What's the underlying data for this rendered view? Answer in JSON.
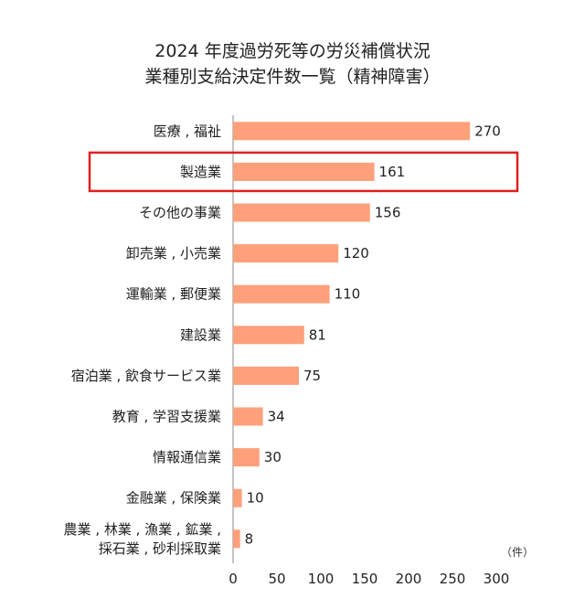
{
  "chart_data": {
    "type": "bar",
    "orientation": "horizontal",
    "title": [
      "2024 年度過労死等の労災補償状況",
      "業種別支給決定件数一覧（精神障害）"
    ],
    "categories": [
      [
        "医療 , 福祉"
      ],
      [
        "製造業"
      ],
      [
        "その他の事業"
      ],
      [
        "卸売業 , 小売業"
      ],
      [
        "運輸業 , 郵便業"
      ],
      [
        "建設業"
      ],
      [
        "宿泊業 , 飲食サービス業"
      ],
      [
        "教育 , 学習支援業"
      ],
      [
        "情報通信業"
      ],
      [
        "金融業 , 保険業"
      ],
      [
        "農業 , 林業 , 漁業 , 鉱業 ,",
        "採石業 , 砂利採取業"
      ]
    ],
    "values": [
      270,
      161,
      156,
      120,
      110,
      81,
      75,
      34,
      30,
      10,
      8
    ],
    "xlim": [
      0,
      300
    ],
    "xticks": [
      0,
      50,
      100,
      150,
      200,
      250,
      300
    ],
    "unit": "（件）",
    "highlighted_category": "製造業",
    "grid": false,
    "colors": {
      "bar": "#FFA07A",
      "highlight": "#E02020",
      "axis": "#888888"
    }
  }
}
